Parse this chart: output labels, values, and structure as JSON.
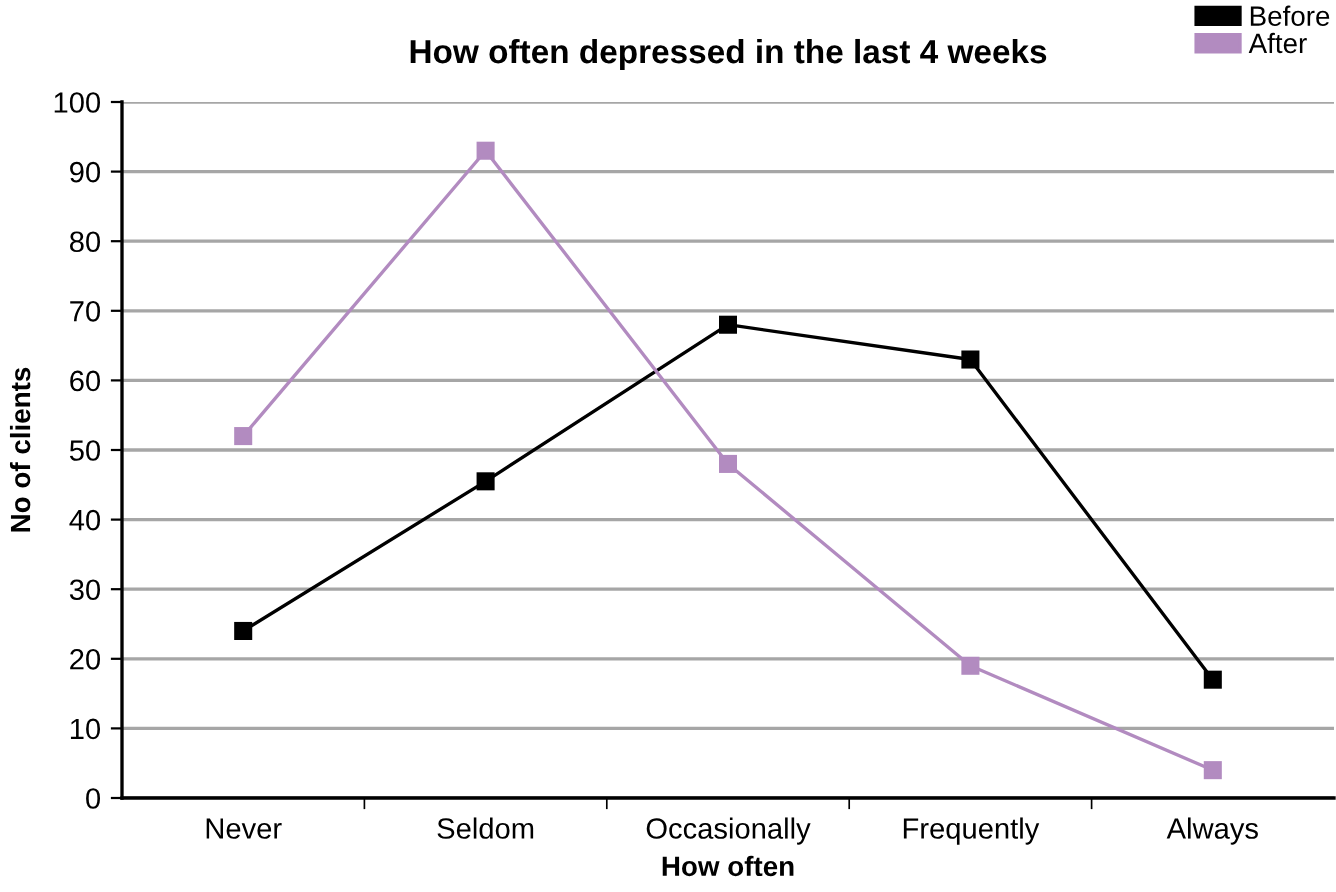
{
  "chart_data": {
    "type": "line",
    "title": "How often depressed in the last 4 weeks",
    "xlabel": "How often",
    "ylabel": "No of clients",
    "categories": [
      "Never",
      "Seldom",
      "Occasionally",
      "Frequently",
      "Always"
    ],
    "series": [
      {
        "name": "Before",
        "color": "#000000",
        "values": [
          24,
          45.5,
          68,
          63,
          17
        ]
      },
      {
        "name": "After",
        "color": "#b28bc0",
        "values": [
          52,
          93,
          48,
          19,
          4
        ]
      }
    ],
    "ylim": [
      0,
      100
    ],
    "yticks": [
      0,
      10,
      20,
      30,
      40,
      50,
      60,
      70,
      80,
      90,
      100
    ],
    "grid": "y",
    "legend": "top right",
    "marker": "square",
    "line_style": "solid"
  }
}
